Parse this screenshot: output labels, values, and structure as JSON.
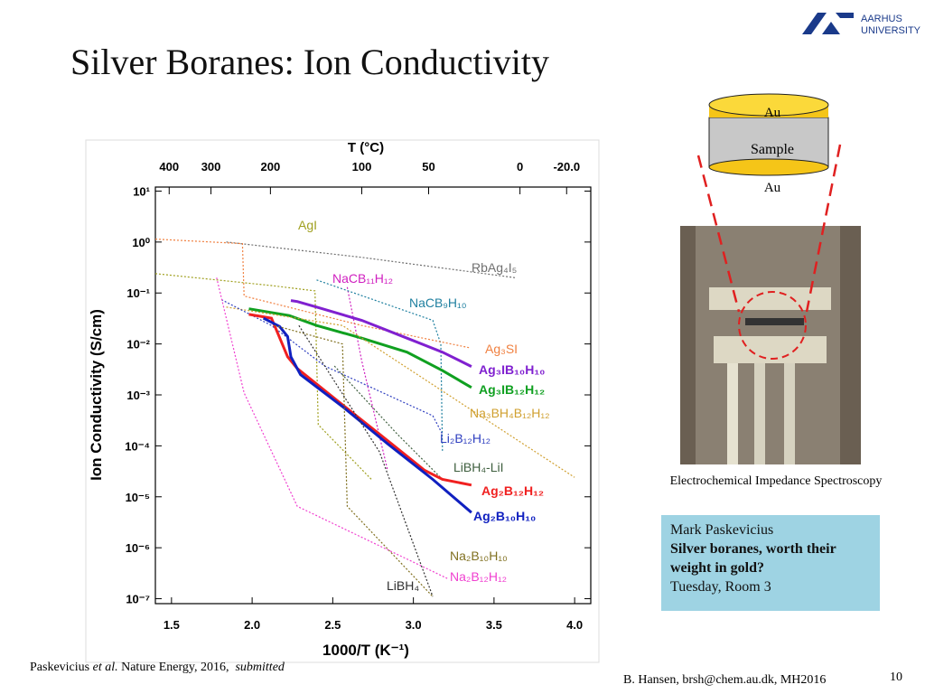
{
  "header": {
    "title": "Silver Boranes: Ion Conductivity",
    "logo_line1": "AARHUS",
    "logo_line2": "UNIVERSITY"
  },
  "chart_data": {
    "type": "line",
    "log_y": true,
    "x_label": "1000/T (K⁻¹)",
    "y_label": "Ion Conductivity (S/cm)",
    "x2_label": "T (°C)",
    "xlim": [
      1.4,
      4.1
    ],
    "ylim": [
      8e-08,
      12
    ],
    "xticks": [
      1.5,
      {
        "value": 2,
        "label": "2.0"
      },
      2.5,
      {
        "value": 3,
        "label": "3.0"
      },
      3.5,
      {
        "value": 4,
        "label": "4.0"
      }
    ],
    "x2ticks": [
      400,
      300,
      200,
      100,
      50,
      0,
      {
        "value": -20,
        "label": "-20.0"
      }
    ],
    "yticks": [
      {
        "value": 10,
        "label": "10¹"
      },
      {
        "value": 1,
        "label": "10⁰"
      },
      {
        "value": 0.1,
        "label": "10⁻¹"
      },
      {
        "value": 0.01,
        "label": "10⁻²"
      },
      {
        "value": 0.001,
        "label": "10⁻³"
      },
      {
        "value": 0.0001,
        "label": "10⁻⁴"
      },
      {
        "value": 1e-05,
        "label": "10⁻⁵"
      },
      {
        "value": 1e-06,
        "label": "10⁻⁶"
      },
      {
        "value": 1e-07,
        "label": "10⁻⁷"
      }
    ],
    "series": [
      {
        "name": "AgI",
        "color": "#a0a020",
        "line_style": "dotted",
        "x": [
          1.4,
          2.12,
          2.39,
          2.41,
          2.74
        ],
        "values": [
          0.24,
          0.14,
          0.11,
          0.00026,
          2.2e-05
        ]
      },
      {
        "name": "RbAg₄I₅",
        "color": "#707070",
        "line_style": "dotted",
        "x": [
          1.84,
          2.68,
          3.63
        ],
        "values": [
          1.0,
          0.5,
          0.2
        ]
      },
      {
        "name": "NaCB₁₁H₁₂",
        "color": "#d020c0",
        "line_style": "dotted",
        "x": [
          2.59,
          2.68,
          2.84
        ],
        "values": [
          0.13,
          0.0046,
          3.3e-05
        ]
      },
      {
        "name": "NaCB₉H₁₀",
        "color": "#2080a0",
        "line_style": "dotted",
        "x": [
          2.4,
          3.12,
          3.17,
          3.18
        ],
        "values": [
          0.18,
          0.029,
          0.01,
          7.6e-05
        ]
      },
      {
        "name": "Ag₃SI",
        "color": "#f08040",
        "line_style": "dotted",
        "x": [
          1.4,
          1.94,
          1.95,
          2.68,
          3.35
        ],
        "values": [
          1.14,
          0.93,
          0.087,
          0.023,
          0.0084
        ]
      },
      {
        "name": "Ag₃IB₁₀H₁₀",
        "color": "#8020d0",
        "line_style": "solid",
        "x": [
          2.24,
          2.28,
          2.4,
          2.68,
          2.96,
          3.18,
          3.36
        ],
        "values": [
          0.071,
          0.068,
          0.053,
          0.029,
          0.013,
          0.0069,
          0.0036
        ]
      },
      {
        "name": "Ag₃IB₁₂H₁₂",
        "color": "#10a020",
        "line_style": "solid",
        "x": [
          1.98,
          2.23,
          2.4,
          2.68,
          2.96,
          3.18,
          3.36
        ],
        "values": [
          0.049,
          0.036,
          0.023,
          0.013,
          0.0069,
          0.003,
          0.0014
        ]
      },
      {
        "name": "Na₃BH₄B₁₂H₁₂",
        "color": "#d0a030",
        "line_style": "dotted",
        "x": [
          1.84,
          2.56,
          3.68,
          4.0
        ],
        "values": [
          0.053,
          0.023,
          0.00011,
          2.4e-05
        ]
      },
      {
        "name": "Li₂B₁₂H₁₂",
        "color": "#3040c0",
        "line_style": "dotted",
        "x": [
          1.81,
          2.12,
          2.45,
          3.12,
          3.18
        ],
        "values": [
          0.074,
          0.023,
          0.0037,
          0.00039,
          0.00017
        ]
      },
      {
        "name": "LiBH₄-LiI",
        "color": "#406040",
        "line_style": "dotted",
        "x": [
          2.51,
          2.9,
          3.18
        ],
        "values": [
          0.0037,
          0.00017,
          2.2e-05
        ]
      },
      {
        "name": "Ag₂B₁₂H₁₂",
        "color": "#f02020",
        "line_style": "solid",
        "x": [
          1.98,
          2.12,
          2.22,
          2.28,
          2.56,
          2.79,
          3.07,
          3.18,
          3.36
        ],
        "values": [
          0.038,
          0.032,
          0.0056,
          0.0033,
          0.00064,
          0.00017,
          3.3e-05,
          2.2e-05,
          1.7e-05
        ]
      },
      {
        "name": "Ag₂B₁₀H₁₀",
        "color": "#1020c0",
        "line_style": "solid",
        "x": [
          2.07,
          2.17,
          2.22,
          2.24,
          2.3,
          2.56,
          2.84,
          3.12,
          3.36
        ],
        "values": [
          0.032,
          0.022,
          0.014,
          0.0056,
          0.0025,
          0.00059,
          0.00011,
          2.2e-05,
          4.9e-06
        ]
      },
      {
        "name": "Na₂B₁₀H₁₀",
        "color": "#807020",
        "line_style": "dotted",
        "x": [
          2.14,
          2.56,
          2.59,
          3.12
        ],
        "values": [
          0.023,
          0.01,
          6.5e-06,
          1.1e-07
        ]
      },
      {
        "name": "Na₂B₁₂H₁₂",
        "color": "#f040d0",
        "line_style": "dotted",
        "x": [
          1.78,
          1.95,
          2.28,
          3.21
        ],
        "values": [
          0.2,
          0.0011,
          6.5e-06,
          2.5e-07
        ]
      },
      {
        "name": "LiBH₄",
        "color": "#303030",
        "line_style": "dotted",
        "x": [
          2.29,
          2.79,
          3.12
        ],
        "values": [
          0.023,
          7.6e-05,
          1.1e-07
        ]
      }
    ]
  },
  "figure": {
    "top_label": "Au",
    "middle_label": "Sample",
    "bottom_label": "Au",
    "caption": "Electrochemical Impedance Spectroscopy"
  },
  "talk_box": {
    "speaker": "Mark Paskevicius",
    "talk_title": "Silver boranes, worth their weight in gold?",
    "time": "Tuesday, Room 3"
  },
  "footer": {
    "citation_author": "Paskevicius",
    "citation_etal": "et al.",
    "citation_journal": "Nature Energy, 2016,",
    "citation_status": "submitted",
    "credit": "B. Hansen, brsh@chem.au.dk, MH2016",
    "page": "10"
  }
}
